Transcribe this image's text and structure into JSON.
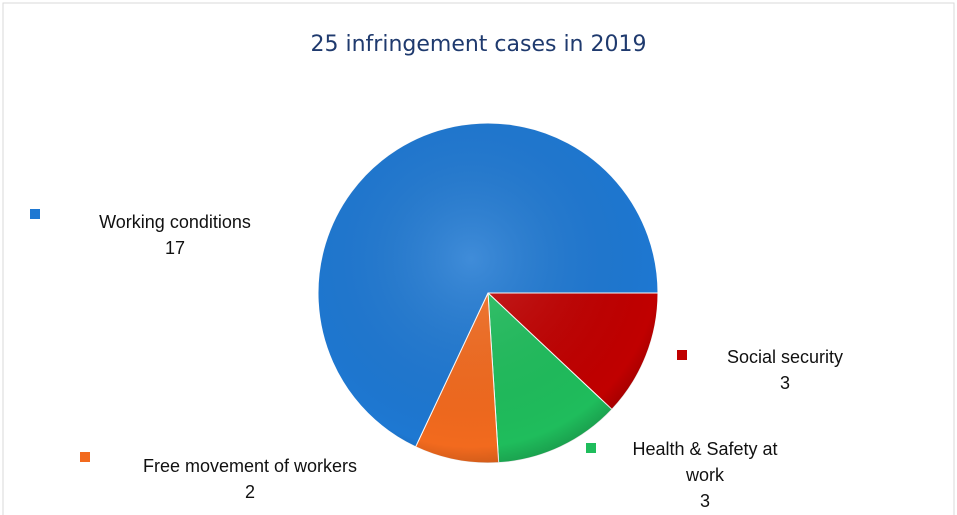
{
  "chart_data": {
    "type": "pie",
    "title": "25 infringement cases in 2019",
    "categories": [
      "Social security",
      "Health & Safety at work",
      "Free movement of workers",
      "Working conditions"
    ],
    "values": [
      3,
      3,
      2,
      17
    ],
    "colors": [
      "#c00000",
      "#1fbd5c",
      "#f26a1e",
      "#1e78d2"
    ]
  }
}
